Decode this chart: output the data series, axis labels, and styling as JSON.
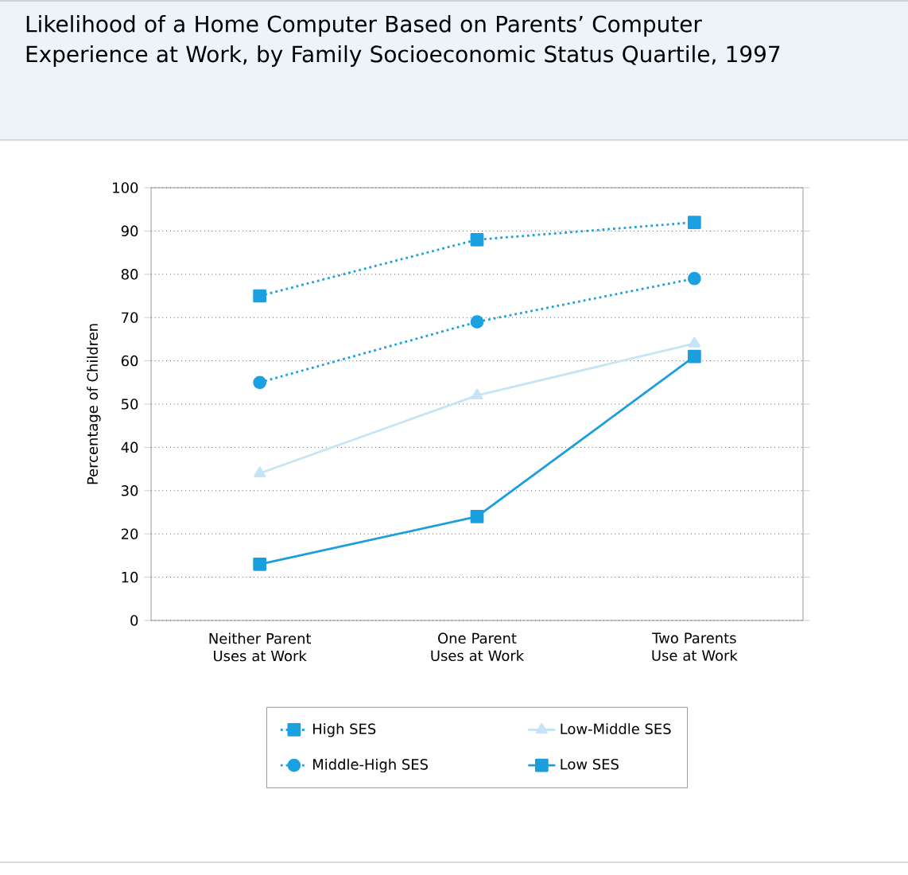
{
  "chart_data": {
    "type": "line",
    "title": "Likelihood of a Home Computer Based on Parents’ Computer Experience at Work, by Family Socioeconomic Status Quartile, 1997",
    "ylabel": "Percentage of Children",
    "categories": [
      "Neither Parent Uses at Work",
      "One Parent Uses at Work",
      "Two Parents Use at Work"
    ],
    "ylim": [
      0,
      100
    ],
    "yticks": [
      0,
      10,
      20,
      30,
      40,
      50,
      60,
      70,
      80,
      90,
      100
    ],
    "grid": "y",
    "legend": "bottom",
    "series": [
      {
        "name": "High SES",
        "color": "#1ba1e2",
        "values": [
          75,
          88,
          92
        ],
        "marker": "square",
        "line_style": "dotted"
      },
      {
        "name": "Middle-High SES",
        "color": "#1ba1e2",
        "values": [
          55,
          69,
          79
        ],
        "marker": "circle",
        "line_style": "dotted"
      },
      {
        "name": "Low-Middle SES",
        "color": "#c6e4f5",
        "values": [
          34,
          52,
          64
        ],
        "marker": "triangle",
        "line_style": "solid"
      },
      {
        "name": "Low SES",
        "color": "#1a9fdc",
        "values": [
          13,
          24,
          61
        ],
        "marker": "square",
        "line_style": "solid"
      }
    ]
  }
}
